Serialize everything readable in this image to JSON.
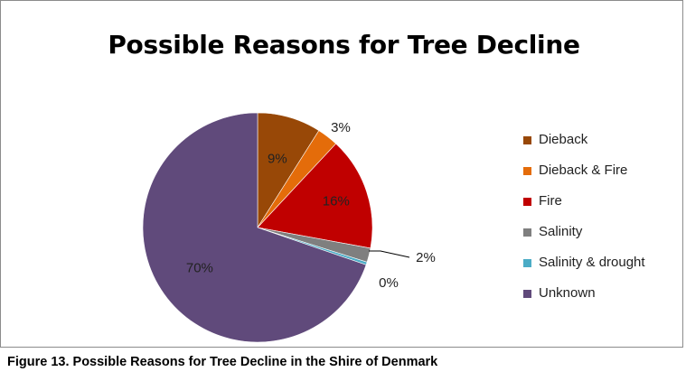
{
  "chart_data": {
    "type": "pie",
    "title": "Possible Reasons for Tree Decline",
    "slices": [
      {
        "name": "Dieback",
        "value": 9,
        "label": "9%",
        "color": "#984807"
      },
      {
        "name": "Dieback & Fire",
        "value": 3,
        "label": "3%",
        "color": "#e46c0a"
      },
      {
        "name": "Fire",
        "value": 16,
        "label": "16%",
        "color": "#c00000"
      },
      {
        "name": "Salinity",
        "value": 2,
        "label": "2%",
        "color": "#7f7f7f"
      },
      {
        "name": "Salinity & drought",
        "value": 0.4,
        "label": "0%",
        "color": "#4bacc6"
      },
      {
        "name": "Unknown",
        "value": 70,
        "label": "70%",
        "color": "#604a7b"
      }
    ],
    "legend_position": "right"
  },
  "caption": "Figure 13. Possible  Reasons for Tree Decline  in the Shire of Denmark"
}
